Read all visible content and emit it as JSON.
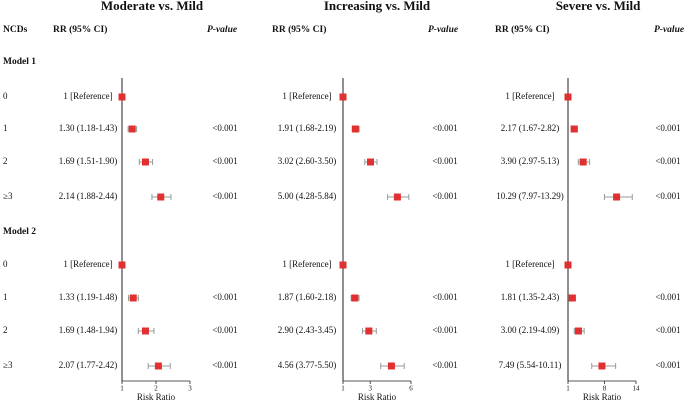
{
  "row_header": "NCDs",
  "models": [
    {
      "name": "Model 1",
      "levels": [
        "0",
        "1",
        "2",
        "≥3"
      ]
    },
    {
      "name": "Model 2",
      "levels": [
        "0",
        "1",
        "2",
        "≥3"
      ]
    }
  ],
  "chart_data": [
    {
      "type": "forest",
      "title": "Moderate vs. Mild",
      "ci_header": "RR (95% CI)",
      "p_header": "P-value",
      "xlabel": "Risk Ratio",
      "xlim": [
        1,
        3
      ],
      "xticks": [
        1,
        2,
        3
      ],
      "color": "#e03030",
      "values": [
        1,
        1.3,
        1.69,
        2.14,
        1,
        1.33,
        1.69,
        2.07
      ],
      "lower": [
        1,
        1.18,
        1.51,
        1.88,
        1,
        1.19,
        1.48,
        1.77
      ],
      "upper": [
        1,
        1.43,
        1.9,
        2.44,
        1,
        1.48,
        1.94,
        2.42
      ],
      "value_labels": [
        "1 [Reference]",
        "1.30 (1.18-1.43)",
        "1.69 (1.51-1.90)",
        "2.14 (1.88-2.44)",
        "1 [Reference]",
        "1.33 (1.19-1.48)",
        "1.69 (1.48-1.94)",
        "2.07 (1.77-2.42)"
      ],
      "p_values": [
        null,
        "<0.001",
        "<0.001",
        "<0.001",
        null,
        "<0.001",
        "<0.001",
        "<0.001"
      ]
    },
    {
      "type": "forest",
      "title": "Increasing vs. Mild",
      "ci_header": "RR (95% CI)",
      "p_header": "P-value",
      "xlabel": "Risk Ratio",
      "xlim": [
        1,
        6
      ],
      "xticks": [
        1,
        3,
        6
      ],
      "color": "#e03030",
      "values": [
        1,
        1.91,
        3.02,
        5.0,
        1,
        1.87,
        2.9,
        4.56
      ],
      "lower": [
        1,
        1.68,
        2.6,
        4.28,
        1,
        1.6,
        2.43,
        3.77
      ],
      "upper": [
        1,
        2.19,
        3.5,
        5.84,
        1,
        2.18,
        3.45,
        5.5
      ],
      "value_labels": [
        "1 [Reference]",
        "1.91 (1.68-2.19)",
        "3.02 (2.60-3.50)",
        "5.00 (4.28-5.84)",
        "1 [Reference]",
        "1.87 (1.60-2.18)",
        "2.90 (2.43-3.45)",
        "4.56 (3.77-5.50)"
      ],
      "p_values": [
        null,
        "<0.001",
        "<0.001",
        "<0.001",
        null,
        "<0.001",
        "<0.001",
        "<0.001"
      ]
    },
    {
      "type": "forest",
      "title": "Severe vs. Mild",
      "ci_header": "RR (95% CI)",
      "p_header": "P-value",
      "xlabel": "Risk Ratio",
      "xlim": [
        1,
        14
      ],
      "xticks": [
        1,
        8,
        14
      ],
      "color": "#e03030",
      "values": [
        1,
        2.17,
        3.9,
        10.29,
        1,
        1.81,
        3.0,
        7.49
      ],
      "lower": [
        1,
        1.67,
        2.97,
        7.97,
        1,
        1.35,
        2.19,
        5.54
      ],
      "upper": [
        1,
        2.82,
        5.13,
        13.29,
        1,
        2.43,
        4.09,
        10.11
      ],
      "value_labels": [
        "1 [Reference]",
        "2.17 (1.67-2.82)",
        "3.90 (2.97-5.13)",
        "10.29 (7.97-13.29)",
        "1 [Reference]",
        "1.81 (1.35-2.43)",
        "3.00 (2.19-4.09)",
        "7.49 (5.54-10.11)"
      ],
      "p_values": [
        null,
        "<0.001",
        "<0.001",
        "<0.001",
        null,
        "<0.001",
        "<0.001",
        "<0.001"
      ]
    }
  ]
}
